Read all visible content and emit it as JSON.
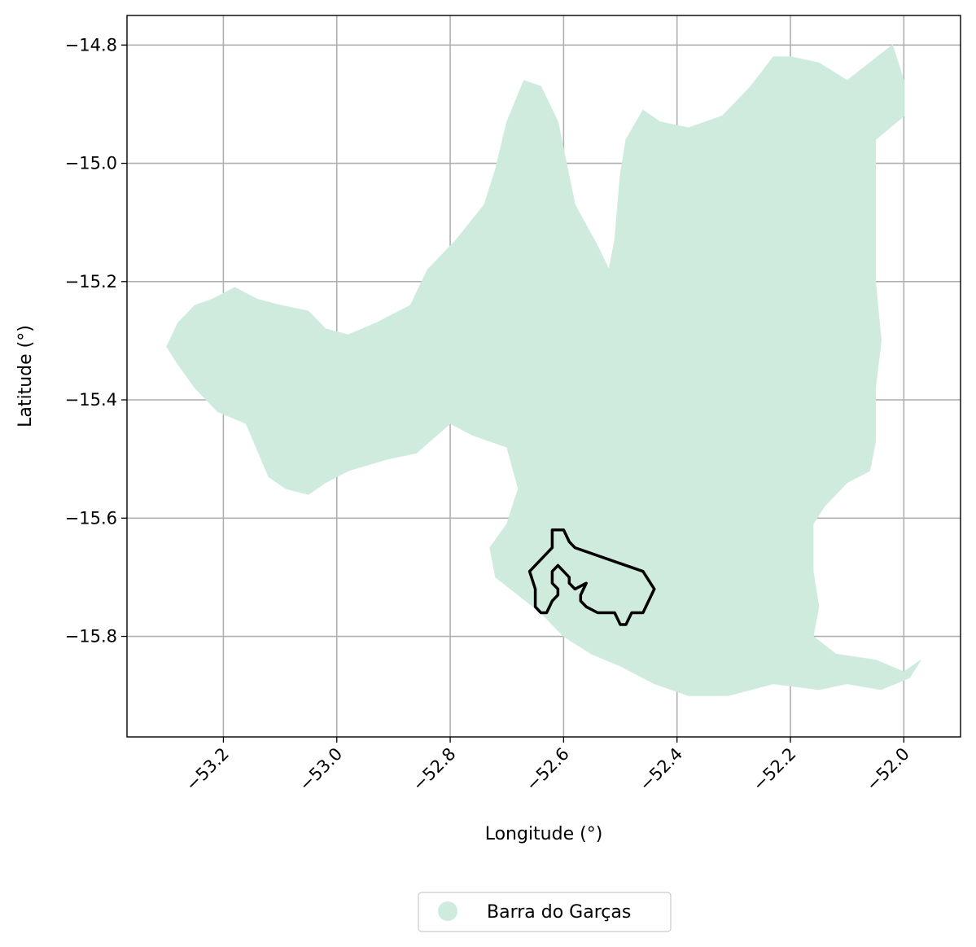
{
  "chart_data": {
    "type": "map",
    "title": "",
    "xlabel": "Longitude (°)",
    "ylabel": "Latitude (°)",
    "xlim": [
      -53.37,
      -51.9
    ],
    "ylim": [
      -15.97,
      -14.75
    ],
    "grid": true,
    "x_ticks": [
      {
        "value": -53.2,
        "label": "−53.2"
      },
      {
        "value": -53.0,
        "label": "−53.0"
      },
      {
        "value": -52.8,
        "label": "−52.8"
      },
      {
        "value": -52.6,
        "label": "−52.6"
      },
      {
        "value": -52.4,
        "label": "−52.4"
      },
      {
        "value": -52.2,
        "label": "−52.2"
      },
      {
        "value": -52.0,
        "label": "−52.0"
      }
    ],
    "y_ticks": [
      {
        "value": -14.8,
        "label": "−14.8"
      },
      {
        "value": -15.0,
        "label": "−15.0"
      },
      {
        "value": -15.2,
        "label": "−15.2"
      },
      {
        "value": -15.4,
        "label": "−15.4"
      },
      {
        "value": -15.6,
        "label": "−15.6"
      },
      {
        "value": -15.8,
        "label": "−15.8"
      }
    ],
    "series": [
      {
        "name": "Barra do Garças",
        "kind": "filled-polygon",
        "color": "#cfebde",
        "coordinates": [
          [
            -53.3,
            -15.31
          ],
          [
            -53.28,
            -15.27
          ],
          [
            -53.25,
            -15.24
          ],
          [
            -53.22,
            -15.23
          ],
          [
            -53.18,
            -15.21
          ],
          [
            -53.14,
            -15.23
          ],
          [
            -53.1,
            -15.24
          ],
          [
            -53.05,
            -15.25
          ],
          [
            -53.02,
            -15.28
          ],
          [
            -52.98,
            -15.29
          ],
          [
            -52.93,
            -15.27
          ],
          [
            -52.87,
            -15.24
          ],
          [
            -52.84,
            -15.18
          ],
          [
            -52.79,
            -15.13
          ],
          [
            -52.74,
            -15.07
          ],
          [
            -52.72,
            -15.01
          ],
          [
            -52.7,
            -14.93
          ],
          [
            -52.67,
            -14.86
          ],
          [
            -52.64,
            -14.87
          ],
          [
            -52.61,
            -14.93
          ],
          [
            -52.58,
            -15.07
          ],
          [
            -52.54,
            -15.14
          ],
          [
            -52.52,
            -15.18
          ],
          [
            -52.51,
            -15.13
          ],
          [
            -52.5,
            -15.02
          ],
          [
            -52.49,
            -14.96
          ],
          [
            -52.46,
            -14.91
          ],
          [
            -52.43,
            -14.93
          ],
          [
            -52.38,
            -14.94
          ],
          [
            -52.32,
            -14.92
          ],
          [
            -52.27,
            -14.87
          ],
          [
            -52.23,
            -14.82
          ],
          [
            -52.2,
            -14.82
          ],
          [
            -52.15,
            -14.83
          ],
          [
            -52.1,
            -14.86
          ],
          [
            -52.06,
            -14.83
          ],
          [
            -52.02,
            -14.8
          ],
          [
            -52.0,
            -14.86
          ],
          [
            -52.0,
            -14.92
          ],
          [
            -52.05,
            -14.96
          ],
          [
            -52.05,
            -15.08
          ],
          [
            -52.05,
            -15.2
          ],
          [
            -52.04,
            -15.3
          ],
          [
            -52.05,
            -15.38
          ],
          [
            -52.05,
            -15.47
          ],
          [
            -52.06,
            -15.52
          ],
          [
            -52.1,
            -15.54
          ],
          [
            -52.14,
            -15.58
          ],
          [
            -52.16,
            -15.61
          ],
          [
            -52.16,
            -15.69
          ],
          [
            -52.15,
            -15.75
          ],
          [
            -52.16,
            -15.8
          ],
          [
            -52.12,
            -15.83
          ],
          [
            -52.05,
            -15.84
          ],
          [
            -52.0,
            -15.86
          ],
          [
            -51.97,
            -15.84
          ],
          [
            -51.99,
            -15.87
          ],
          [
            -52.04,
            -15.89
          ],
          [
            -52.1,
            -15.88
          ],
          [
            -52.15,
            -15.89
          ],
          [
            -52.23,
            -15.88
          ],
          [
            -52.31,
            -15.9
          ],
          [
            -52.38,
            -15.9
          ],
          [
            -52.44,
            -15.88
          ],
          [
            -52.5,
            -15.85
          ],
          [
            -52.55,
            -15.83
          ],
          [
            -52.6,
            -15.8
          ],
          [
            -52.64,
            -15.76
          ],
          [
            -52.68,
            -15.73
          ],
          [
            -52.72,
            -15.7
          ],
          [
            -52.73,
            -15.65
          ],
          [
            -52.7,
            -15.61
          ],
          [
            -52.68,
            -15.55
          ],
          [
            -52.7,
            -15.48
          ],
          [
            -52.76,
            -15.46
          ],
          [
            -52.8,
            -15.44
          ],
          [
            -52.86,
            -15.49
          ],
          [
            -52.91,
            -15.5
          ],
          [
            -52.98,
            -15.52
          ],
          [
            -53.02,
            -15.54
          ],
          [
            -53.05,
            -15.56
          ],
          [
            -53.09,
            -15.55
          ],
          [
            -53.12,
            -15.53
          ],
          [
            -53.16,
            -15.44
          ],
          [
            -53.21,
            -15.42
          ],
          [
            -53.25,
            -15.38
          ],
          [
            -53.28,
            -15.34
          ]
        ]
      },
      {
        "name": "outline",
        "kind": "line",
        "color": "#000000",
        "coordinates": [
          [
            -52.62,
            -15.62
          ],
          [
            -52.6,
            -15.62
          ],
          [
            -52.59,
            -15.64
          ],
          [
            -52.58,
            -15.65
          ],
          [
            -52.46,
            -15.69
          ],
          [
            -52.44,
            -15.72
          ],
          [
            -52.46,
            -15.76
          ],
          [
            -52.48,
            -15.76
          ],
          [
            -52.49,
            -15.78
          ],
          [
            -52.5,
            -15.78
          ],
          [
            -52.51,
            -15.76
          ],
          [
            -52.54,
            -15.76
          ],
          [
            -52.56,
            -15.75
          ],
          [
            -52.57,
            -15.74
          ],
          [
            -52.57,
            -15.73
          ],
          [
            -52.56,
            -15.71
          ],
          [
            -52.58,
            -15.72
          ],
          [
            -52.59,
            -15.71
          ],
          [
            -52.59,
            -15.7
          ],
          [
            -52.6,
            -15.69
          ],
          [
            -52.61,
            -15.68
          ],
          [
            -52.62,
            -15.69
          ],
          [
            -52.62,
            -15.71
          ],
          [
            -52.61,
            -15.72
          ],
          [
            -52.61,
            -15.73
          ],
          [
            -52.62,
            -15.74
          ],
          [
            -52.63,
            -15.76
          ],
          [
            -52.64,
            -15.76
          ],
          [
            -52.65,
            -15.75
          ],
          [
            -52.65,
            -15.72
          ],
          [
            -52.66,
            -15.69
          ],
          [
            -52.62,
            -15.65
          ],
          [
            -52.62,
            -15.63
          ]
        ]
      }
    ],
    "legend": {
      "position": "bottom-center",
      "entries": [
        {
          "label": "Barra do Garças",
          "color": "#cfebde",
          "marker": "circle"
        }
      ]
    }
  }
}
